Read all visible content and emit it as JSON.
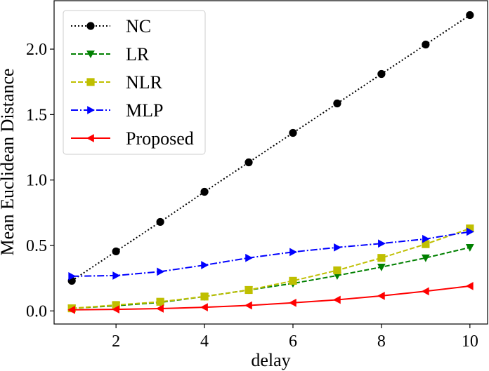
{
  "chart_data": {
    "type": "line",
    "title": "",
    "xlabel": "delay",
    "ylabel": "Mean Euclidean Distance",
    "xlim": [
      0.6,
      10.4
    ],
    "ylim": [
      -0.1,
      2.37
    ],
    "xticks": [
      2,
      4,
      6,
      8,
      10
    ],
    "yticks": [
      0.0,
      0.5,
      1.0,
      1.5,
      2.0
    ],
    "xtick_labels": [
      "2",
      "4",
      "6",
      "8",
      "10"
    ],
    "ytick_labels": [
      "0.0",
      "0.5",
      "1.0",
      "1.5",
      "2.0"
    ],
    "grid": false,
    "legend_position": "top-left",
    "x": [
      1,
      2,
      3,
      4,
      5,
      6,
      7,
      8,
      9,
      10
    ],
    "series": [
      {
        "name": "NC",
        "color": "#000000",
        "linestyle": "dotted",
        "marker": "circle",
        "values": [
          0.23,
          0.455,
          0.68,
          0.91,
          1.135,
          1.36,
          1.585,
          1.81,
          2.035,
          2.26
        ]
      },
      {
        "name": "LR",
        "color": "#008000",
        "linestyle": "dashed",
        "marker": "triangle-down",
        "values": [
          0.02,
          0.04,
          0.065,
          0.11,
          0.16,
          0.21,
          0.27,
          0.335,
          0.405,
          0.485
        ]
      },
      {
        "name": "NLR",
        "color": "#bfbf00",
        "linestyle": "dashed",
        "marker": "square",
        "values": [
          0.02,
          0.045,
          0.07,
          0.11,
          0.16,
          0.23,
          0.31,
          0.405,
          0.51,
          0.63
        ]
      },
      {
        "name": "MLP",
        "color": "#0000ff",
        "linestyle": "dashdot",
        "marker": "triangle-right",
        "values": [
          0.265,
          0.27,
          0.3,
          0.35,
          0.405,
          0.45,
          0.485,
          0.515,
          0.55,
          0.605
        ]
      },
      {
        "name": "Proposed",
        "color": "#ff0000",
        "linestyle": "solid",
        "marker": "triangle-left",
        "values": [
          0.008,
          0.012,
          0.018,
          0.028,
          0.042,
          0.062,
          0.085,
          0.115,
          0.15,
          0.19
        ]
      }
    ]
  }
}
